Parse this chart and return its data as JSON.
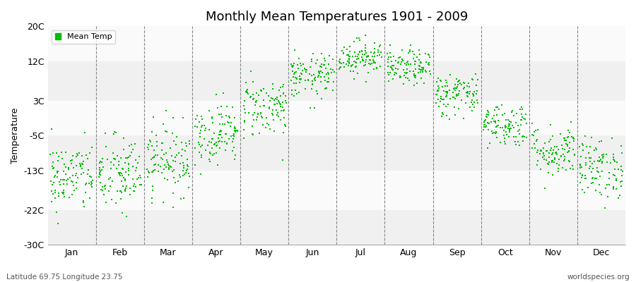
{
  "title": "Monthly Mean Temperatures 1901 - 2009",
  "ylabel": "Temperature",
  "yticks": [
    -30,
    -22,
    -13,
    -5,
    3,
    12,
    20
  ],
  "ytick_labels": [
    "-30C",
    "-22C",
    "-13C",
    "-5C",
    "3C",
    "12C",
    "20C"
  ],
  "ylim": [
    -30,
    20
  ],
  "month_labels": [
    "Jan",
    "Feb",
    "Mar",
    "Apr",
    "May",
    "Jun",
    "Jul",
    "Aug",
    "Sep",
    "Oct",
    "Nov",
    "Dec"
  ],
  "dot_color": "#00bb00",
  "bg_color": "#ffffff",
  "band_colors": [
    "#f0f0f0",
    "#fafafa"
  ],
  "subtitle_left": "Latitude 69.75 Longitude 23.75",
  "subtitle_right": "worldspecies.org",
  "legend_label": "Mean Temp",
  "monthly_means": [
    -14.5,
    -14.0,
    -10.5,
    -4.5,
    1.5,
    8.5,
    13.0,
    10.5,
    4.5,
    -2.5,
    -8.5,
    -12.5
  ],
  "monthly_stds": [
    4.0,
    4.5,
    4.0,
    3.5,
    3.5,
    2.5,
    2.0,
    2.0,
    2.5,
    2.5,
    3.0,
    3.5
  ],
  "n_years": 109,
  "xlim": [
    0,
    12
  ],
  "month_boundaries": [
    1,
    2,
    3,
    4,
    5,
    6,
    7,
    8,
    9,
    10,
    11
  ],
  "month_tick_positions": [
    0.5,
    1.5,
    2.5,
    3.5,
    4.5,
    5.5,
    6.5,
    7.5,
    8.5,
    9.5,
    10.5,
    11.5
  ]
}
